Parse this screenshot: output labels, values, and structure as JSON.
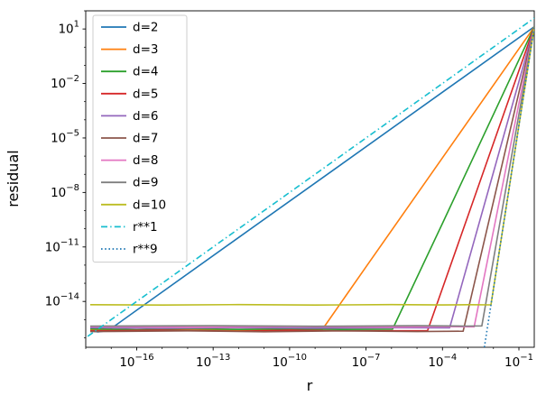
{
  "chart_data": {
    "type": "line",
    "title": "",
    "xlabel": "r",
    "ylabel": "residual",
    "xscale": "log",
    "yscale": "log",
    "xlim": [
      1e-18,
      0.4
    ],
    "ylim": [
      3e-17,
      100
    ],
    "xtick_exponents": [
      -16,
      -13,
      -10,
      -7,
      -4,
      -1
    ],
    "ytick_exponents": [
      1,
      -2,
      -5,
      -8,
      -11,
      -14
    ],
    "grid": false,
    "legend_position": "upper left",
    "legend_labels": [
      "d=2",
      "d=3",
      "d=4",
      "d=5",
      "d=6",
      "d=7",
      "d=8",
      "d=9",
      "d=10",
      "r**1",
      "r**9"
    ],
    "series": [
      {
        "name": "d=2",
        "color": "#1f77b4",
        "style": "solid",
        "points": [
          [
            1.5e-18,
            2.4e-16
          ],
          [
            3e-18,
            2.1e-16
          ],
          [
            5e-18,
            2.3e-16
          ],
          [
            8e-18,
            2.6e-16
          ],
          [
            1e-16,
            3.3e-15
          ],
          [
            1e-12,
            3.3e-11
          ],
          [
            1e-08,
            3.3e-07
          ],
          [
            0.0001,
            0.0033
          ],
          [
            0.4,
            13.2
          ]
        ]
      },
      {
        "name": "d=3",
        "color": "#ff7f0e",
        "style": "solid",
        "points": [
          [
            1.5e-18,
            2.9e-16
          ],
          [
            1e-16,
            2.6e-16
          ],
          [
            1e-14,
            3e-16
          ],
          [
            1e-12,
            2.65e-16
          ],
          [
            1e-11,
            2.9e-16
          ],
          [
            1e-10,
            2.7e-16
          ],
          [
            1.9e-09,
            2.8e-16
          ],
          [
            1e-07,
            8.1e-13
          ],
          [
            1e-05,
            8.1e-09
          ],
          [
            0.001,
            8.1e-05
          ],
          [
            0.1,
            0.81
          ],
          [
            0.4,
            13
          ]
        ]
      },
      {
        "name": "d=4",
        "color": "#2ca02c",
        "style": "solid",
        "points": [
          [
            1.5e-18,
            3.1e-16
          ],
          [
            1e-16,
            2.8e-16
          ],
          [
            1e-14,
            3.2e-16
          ],
          [
            1e-12,
            2.9e-16
          ],
          [
            1e-10,
            3.1e-16
          ],
          [
            1e-08,
            2.9e-16
          ],
          [
            1.1e-06,
            3e-16
          ],
          [
            0.0001,
            2e-10
          ],
          [
            0.01,
            0.0002
          ],
          [
            0.4,
            13
          ]
        ]
      },
      {
        "name": "d=5",
        "color": "#d62728",
        "style": "solid",
        "points": [
          [
            1.5e-18,
            2.4e-16
          ],
          [
            1e-15,
            2.6e-16
          ],
          [
            1e-12,
            2.3e-16
          ],
          [
            1e-10,
            2.6e-16
          ],
          [
            1e-08,
            2.4e-16
          ],
          [
            2.6e-05,
            2.5e-16
          ],
          [
            0.001,
            5.1e-10
          ],
          [
            0.1,
            0.051
          ],
          [
            0.4,
            13
          ]
        ]
      },
      {
        "name": "d=6",
        "color": "#9467bd",
        "style": "solid",
        "points": [
          [
            1.5e-18,
            3.6e-16
          ],
          [
            1e-15,
            3.3e-16
          ],
          [
            1e-12,
            3.6e-16
          ],
          [
            1e-09,
            3.4e-16
          ],
          [
            1e-06,
            3.6e-16
          ],
          [
            0.00019,
            3.5e-16
          ],
          [
            0.01,
            1.3e-07
          ],
          [
            0.4,
            13
          ]
        ]
      },
      {
        "name": "d=7",
        "color": "#8c564b",
        "style": "solid",
        "points": [
          [
            1.5e-18,
            2.2e-16
          ],
          [
            1e-14,
            2.4e-16
          ],
          [
            1e-11,
            2.15e-16
          ],
          [
            1e-08,
            2.4e-16
          ],
          [
            1e-05,
            2.2e-16
          ],
          [
            0.00065,
            2.3e-16
          ],
          [
            0.01,
            3.2e-09
          ],
          [
            0.1,
            0.0032
          ],
          [
            0.4,
            13
          ]
        ]
      },
      {
        "name": "d=8",
        "color": "#e377c2",
        "style": "solid",
        "points": [
          [
            1.5e-18,
            4.1e-16
          ],
          [
            1e-14,
            3.8e-16
          ],
          [
            1e-10,
            4.1e-16
          ],
          [
            1e-06,
            3.9e-16
          ],
          [
            0.0001,
            4.1e-16
          ],
          [
            0.00175,
            4e-16
          ],
          [
            0.02,
            1e-08
          ],
          [
            0.1,
            0.00079
          ],
          [
            0.4,
            13
          ]
        ]
      },
      {
        "name": "d=9",
        "color": "#7f7f7f",
        "style": "solid",
        "points": [
          [
            1.5e-18,
            4.4e-16
          ],
          [
            1e-13,
            4.6e-16
          ],
          [
            1e-09,
            4.3e-16
          ],
          [
            1e-05,
            4.6e-16
          ],
          [
            0.001,
            4.4e-16
          ],
          [
            0.0035,
            4.5e-16
          ],
          [
            0.03,
            1.3e-08
          ],
          [
            0.2,
            0.051
          ],
          [
            0.4,
            13
          ]
        ]
      },
      {
        "name": "d=10",
        "color": "#bcbd22",
        "style": "solid",
        "points": [
          [
            1.5e-18,
            6.6e-15
          ],
          [
            1e-15,
            6.3e-15
          ],
          [
            1e-12,
            6.7e-15
          ],
          [
            1e-09,
            6.3e-15
          ],
          [
            1e-06,
            6.7e-15
          ],
          [
            0.0001,
            6.4e-15
          ],
          [
            0.001,
            6.6e-15
          ],
          [
            0.008,
            6.5e-15
          ],
          [
            0.05,
            9.7e-08
          ],
          [
            0.2,
            0.025
          ],
          [
            0.4,
            13
          ]
        ]
      },
      {
        "name": "r**1",
        "color": "#17becf",
        "style": "dashdot",
        "points": [
          [
            1.2e-18,
            1.2e-16
          ],
          [
            0.4,
            40
          ]
        ]
      },
      {
        "name": "r**9",
        "color": "#1f77b4",
        "style": "dotted",
        "points": [
          [
            0.0044,
            3e-17
          ],
          [
            0.4,
            13
          ]
        ]
      }
    ]
  }
}
